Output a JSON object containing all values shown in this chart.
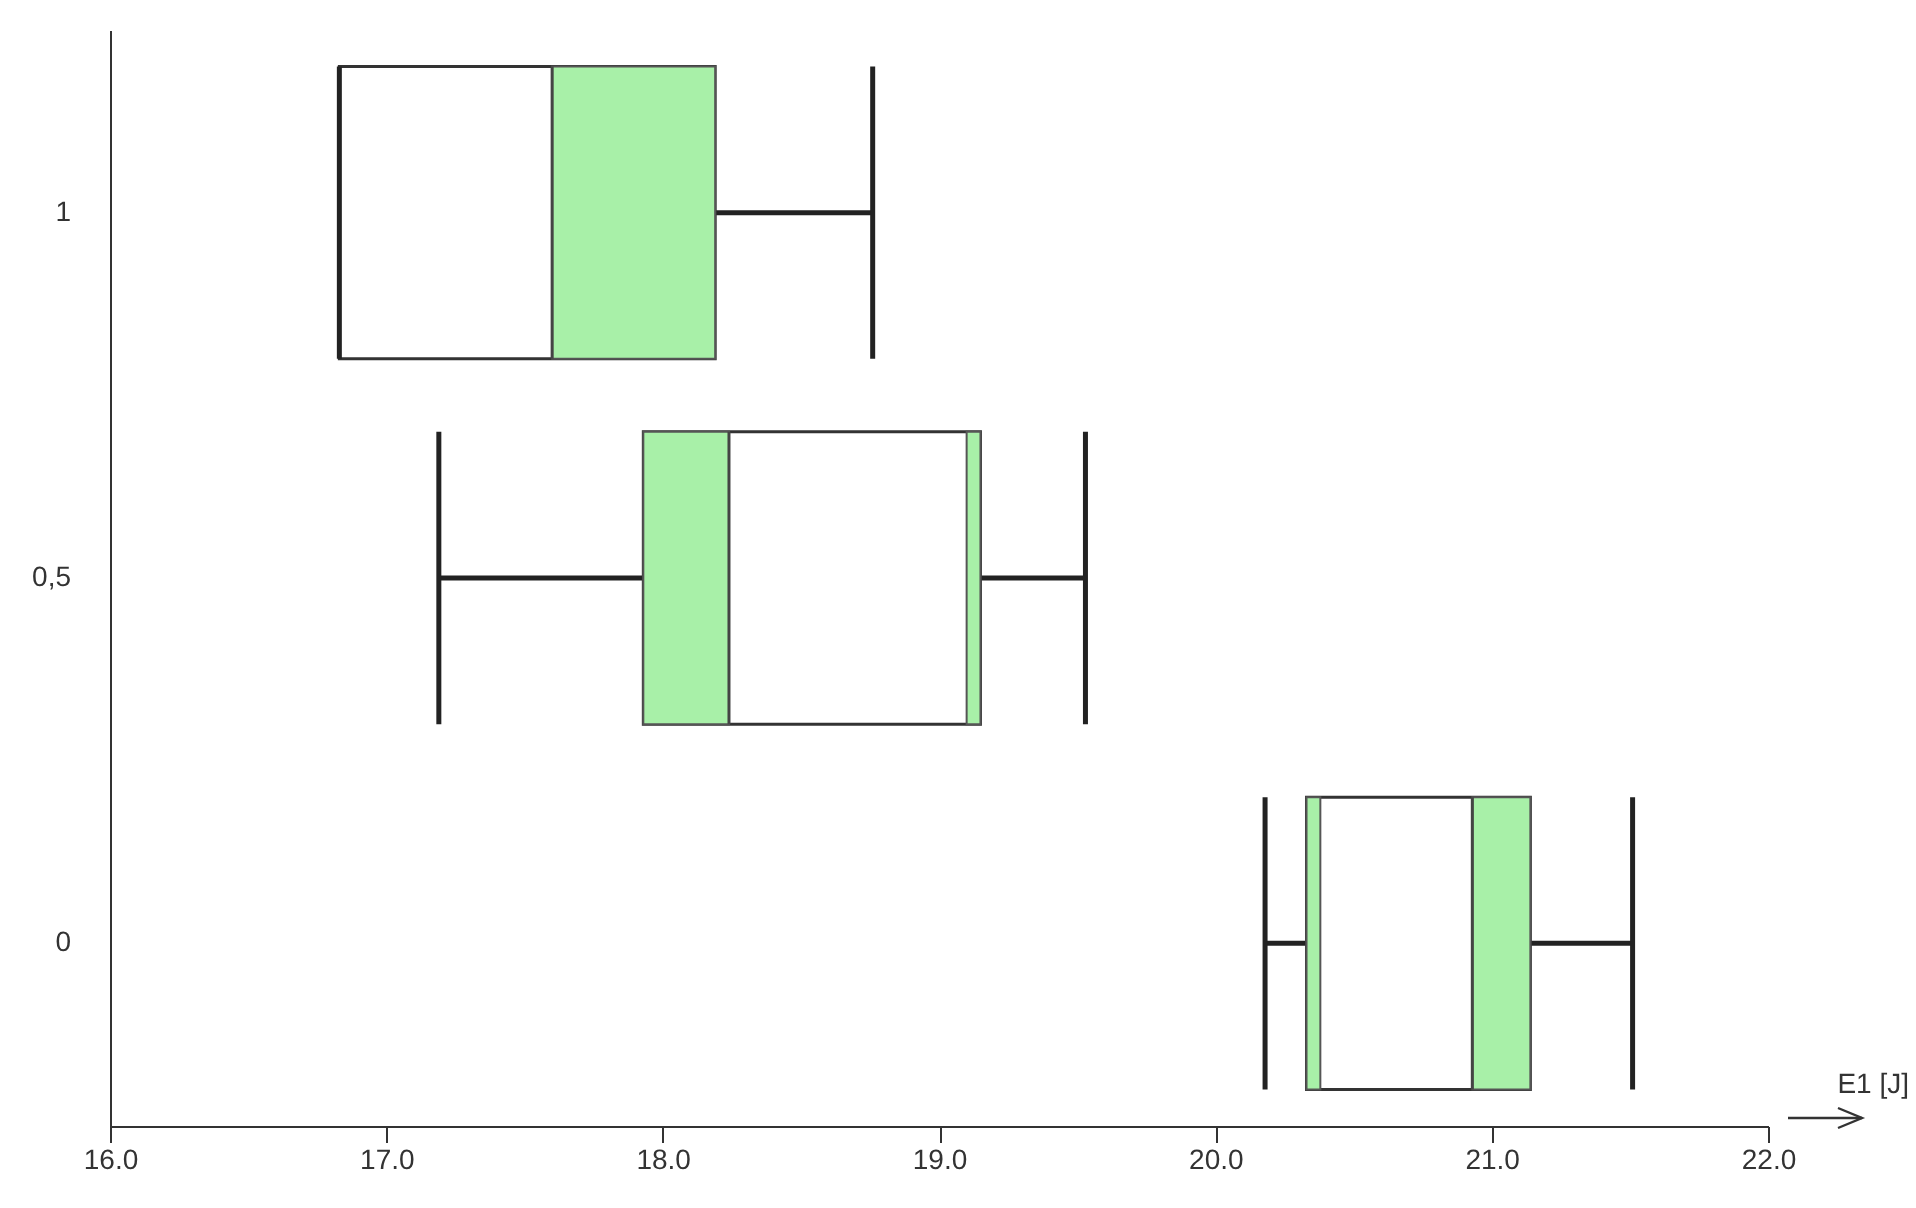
{
  "chart_data": {
    "type": "box",
    "orientation": "horizontal",
    "xlabel": "E1 [J]",
    "categories": [
      "1",
      "0,5",
      "0"
    ],
    "boxes": [
      {
        "low": 16.83,
        "q1": 16.83,
        "median": 17.6,
        "q3": 18.19,
        "high": 18.76
      },
      {
        "low": 17.19,
        "q1": 17.93,
        "median": 18.24,
        "q3": 19.15,
        "high": 19.53
      },
      {
        "low": 20.18,
        "q1": 20.33,
        "median": 20.93,
        "q3": 21.14,
        "high": 21.51
      }
    ],
    "series": [
      {
        "type": "bar",
        "color": "#a8f0a8",
        "base": [
          null,
          17.93,
          20.33
        ],
        "values": [
          null,
          0.31,
          0.05
        ]
      },
      {
        "type": "bar",
        "color": "#a8f0a8",
        "base": [
          17.6,
          19.1,
          20.93
        ],
        "values": [
          0.59,
          0.05,
          0.21
        ]
      }
    ],
    "xlim": [
      16,
      22
    ],
    "xticks": [
      {
        "value": 16,
        "label": "16.0"
      },
      {
        "value": 17,
        "label": "17.0"
      },
      {
        "value": 18,
        "label": "18.0"
      },
      {
        "value": 19,
        "label": "19.0"
      },
      {
        "value": 20,
        "label": "20.0"
      },
      {
        "value": 21,
        "label": "21.0"
      },
      {
        "value": 22,
        "label": "22.0"
      }
    ],
    "grid": false
  }
}
